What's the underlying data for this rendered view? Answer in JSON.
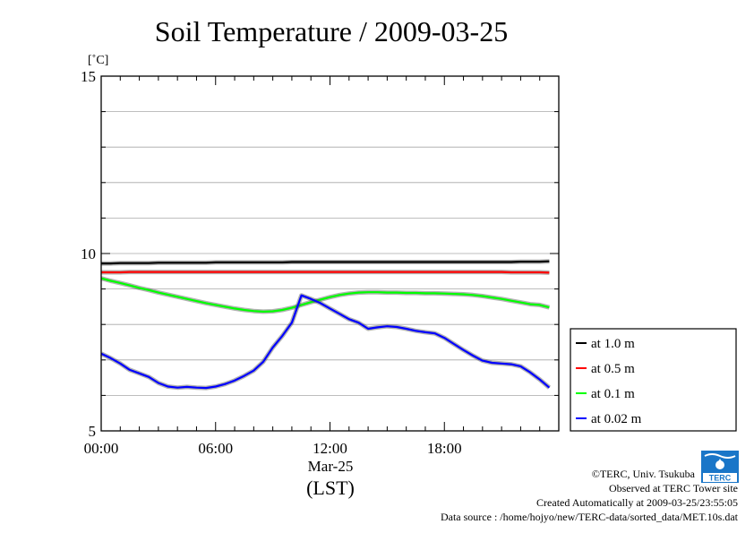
{
  "chart_data": {
    "type": "line",
    "title": "Soil Temperature / 2009-03-25",
    "ylabel": "[˚C]",
    "xlabel": "(LST)",
    "x_date_label": "Mar-25",
    "xlim": [
      "00:00",
      "24:00"
    ],
    "ylim": [
      5,
      15
    ],
    "y_ticks": [
      "5",
      "10",
      "15"
    ],
    "x_ticks": [
      "00:00",
      "06:00",
      "12:00",
      "18:00"
    ],
    "grid": true,
    "legend_position": "right",
    "hours": [
      0,
      0.5,
      1,
      1.5,
      2,
      2.5,
      3,
      3.5,
      4,
      4.5,
      5,
      5.5,
      6,
      6.5,
      7,
      7.5,
      8,
      8.5,
      9,
      9.5,
      10,
      10.5,
      11,
      11.5,
      12,
      12.5,
      13,
      13.5,
      14,
      14.5,
      15,
      15.5,
      16,
      16.5,
      17,
      17.5,
      18,
      18.5,
      19,
      19.5,
      20,
      20.5,
      21,
      21.5,
      22,
      22.5,
      23,
      23.5
    ],
    "series": [
      {
        "name": "at 1.0 m",
        "color": "#000000",
        "values": [
          9.72,
          9.72,
          9.73,
          9.73,
          9.73,
          9.73,
          9.74,
          9.74,
          9.74,
          9.74,
          9.74,
          9.74,
          9.75,
          9.75,
          9.75,
          9.75,
          9.75,
          9.75,
          9.75,
          9.75,
          9.76,
          9.76,
          9.76,
          9.76,
          9.76,
          9.76,
          9.76,
          9.76,
          9.76,
          9.76,
          9.76,
          9.76,
          9.76,
          9.76,
          9.76,
          9.76,
          9.76,
          9.76,
          9.76,
          9.76,
          9.76,
          9.76,
          9.76,
          9.76,
          9.77,
          9.77,
          9.77,
          9.78
        ]
      },
      {
        "name": "at 0.5 m",
        "color": "#ff0000",
        "values": [
          9.47,
          9.47,
          9.47,
          9.48,
          9.48,
          9.48,
          9.48,
          9.48,
          9.48,
          9.48,
          9.48,
          9.48,
          9.48,
          9.48,
          9.48,
          9.48,
          9.48,
          9.48,
          9.48,
          9.48,
          9.48,
          9.48,
          9.48,
          9.48,
          9.48,
          9.48,
          9.48,
          9.48,
          9.48,
          9.48,
          9.48,
          9.48,
          9.48,
          9.48,
          9.48,
          9.48,
          9.48,
          9.48,
          9.48,
          9.48,
          9.48,
          9.48,
          9.48,
          9.47,
          9.47,
          9.47,
          9.47,
          9.46
        ]
      },
      {
        "name": "at 0.1 m",
        "color": "#00ff00",
        "values": [
          9.3,
          9.23,
          9.17,
          9.1,
          9.03,
          8.97,
          8.9,
          8.84,
          8.78,
          8.72,
          8.66,
          8.6,
          8.55,
          8.5,
          8.45,
          8.41,
          8.38,
          8.36,
          8.37,
          8.41,
          8.47,
          8.55,
          8.63,
          8.7,
          8.77,
          8.83,
          8.87,
          8.9,
          8.91,
          8.91,
          8.9,
          8.9,
          8.89,
          8.89,
          8.88,
          8.88,
          8.87,
          8.86,
          8.85,
          8.83,
          8.8,
          8.76,
          8.72,
          8.67,
          8.62,
          8.57,
          8.55,
          8.48
        ]
      },
      {
        "name": "at 0.02 m",
        "color": "#0000ff",
        "values": [
          7.18,
          7.05,
          6.9,
          6.72,
          6.62,
          6.52,
          6.35,
          6.25,
          6.22,
          6.24,
          6.22,
          6.21,
          6.25,
          6.32,
          6.42,
          6.55,
          6.7,
          6.95,
          7.35,
          7.68,
          8.05,
          8.82,
          8.72,
          8.6,
          8.45,
          8.3,
          8.15,
          8.05,
          7.88,
          7.92,
          7.95,
          7.93,
          7.88,
          7.82,
          7.78,
          7.75,
          7.62,
          7.45,
          7.28,
          7.12,
          6.98,
          6.92,
          6.9,
          6.88,
          6.82,
          6.65,
          6.45,
          6.22
        ]
      }
    ]
  },
  "footer": {
    "credit": "©TERC, Univ. Tsukuba",
    "site": "Observed at TERC Tower site",
    "created": "Created Automatically at 2009-03-25/23:55:05",
    "source": "Data source : /home/hojyo/new/TERC-data/sorted_data/MET.10s.dat",
    "logo_text": "TERC"
  }
}
